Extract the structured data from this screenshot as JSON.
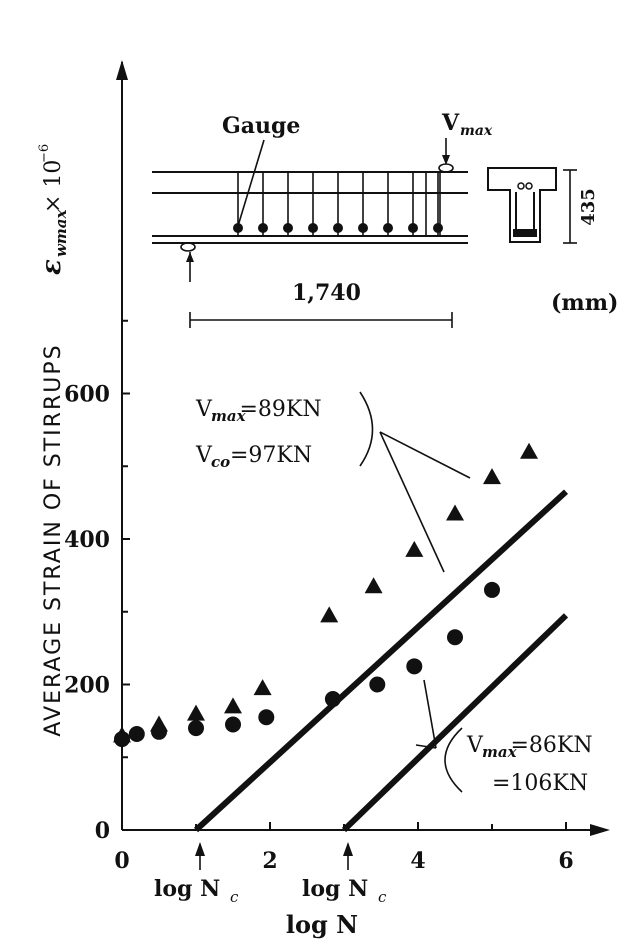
{
  "chart_data": {
    "type": "scatter",
    "xlabel": "log N",
    "ylabel": "AVERAGE  STRAIN  OF  STIRRUPS",
    "ylabel_symbol": "ε",
    "ylabel_subscript": "wmax",
    "ylabel_unit": "× 10",
    "ylabel_exp": "−6",
    "xlim": [
      0,
      6.5
    ],
    "ylim": [
      0,
      1000
    ],
    "x_ticks": [
      0,
      2,
      4,
      6
    ],
    "y_ticks": [
      0,
      200,
      400,
      600
    ],
    "x_tick_labels": [
      "0",
      "2",
      "4",
      "6"
    ],
    "y_tick_labels": [
      "0",
      "200",
      "400",
      "600"
    ],
    "x_markers": [
      {
        "x": 1.0,
        "label": "log N",
        "sub": "c"
      },
      {
        "x": 3.0,
        "label": "log N",
        "sub": "c"
      }
    ],
    "series": [
      {
        "marker": "triangle",
        "points": [
          [
            0,
            130
          ],
          [
            0.5,
            145
          ],
          [
            1.0,
            160
          ],
          [
            1.5,
            170
          ],
          [
            1.9,
            195
          ],
          [
            2.8,
            295
          ],
          [
            3.4,
            335
          ],
          [
            3.95,
            385
          ],
          [
            4.5,
            435
          ],
          [
            5.0,
            485
          ],
          [
            5.5,
            520
          ]
        ]
      },
      {
        "marker": "circle",
        "points": [
          [
            0,
            125
          ],
          [
            0.2,
            132
          ],
          [
            0.5,
            135
          ],
          [
            1.0,
            140
          ],
          [
            1.5,
            145
          ],
          [
            1.95,
            155
          ],
          [
            2.85,
            180
          ],
          [
            3.45,
            200
          ],
          [
            3.95,
            225
          ],
          [
            4.5,
            265
          ],
          [
            5.0,
            330
          ]
        ]
      }
    ],
    "lines": [
      {
        "points": [
          [
            1.0,
            0
          ],
          [
            6.0,
            465
          ]
        ]
      },
      {
        "points": [
          [
            3.0,
            0
          ],
          [
            6.0,
            295
          ]
        ]
      }
    ],
    "annotations": [
      {
        "lines": [
          "V_max=89KN",
          "V_co=97KN"
        ]
      },
      {
        "lines": [
          "V_max=86KN",
          "=106KN"
        ]
      }
    ],
    "grid": false
  },
  "inset": {
    "gauge_label": "Gauge",
    "vmax_label": "V",
    "vmax_sub": "max",
    "span_label": "1,740",
    "height_label": "435",
    "unit_label": "(mm)"
  }
}
